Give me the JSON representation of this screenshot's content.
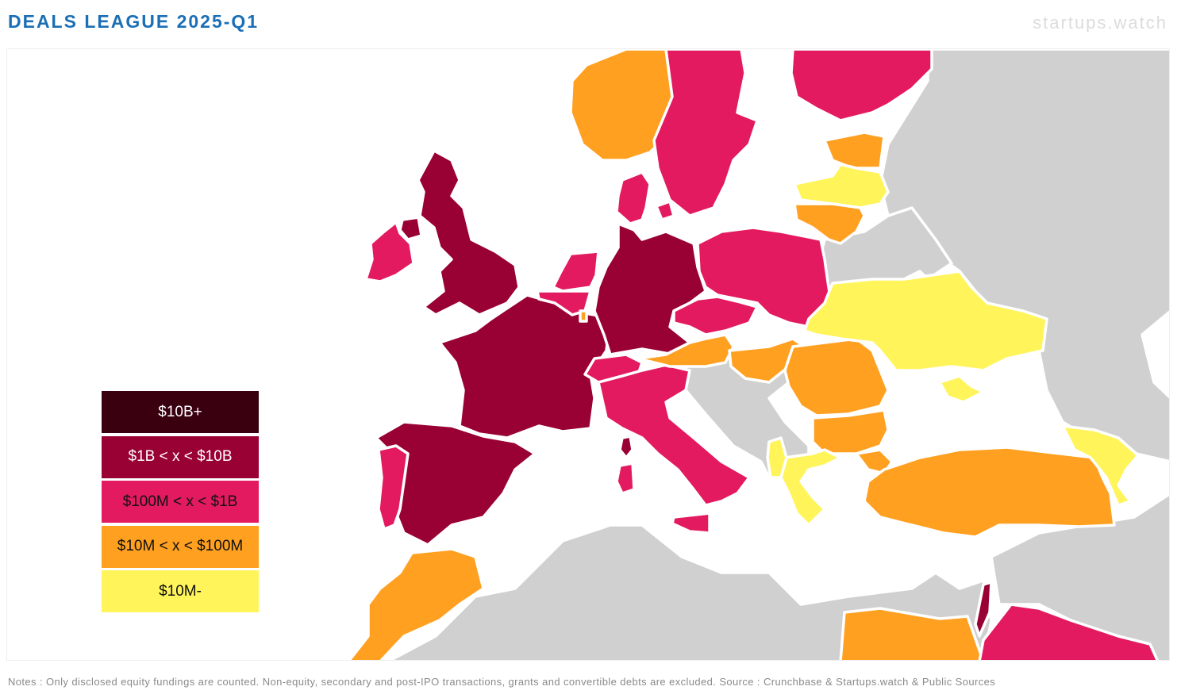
{
  "header": {
    "title": "DEALS LEAGUE 2025-Q1",
    "brand": "startups.watch"
  },
  "colors": {
    "tier_10b_plus": "#3a0010",
    "tier_1b_10b": "#990033",
    "tier_100m_1b": "#e31a5f",
    "tier_10m_100m": "#ffa020",
    "tier_10m_minus": "#fff45a",
    "no_data": "#d0d0d0"
  },
  "legend": {
    "items": [
      {
        "label": "$10B+",
        "tier": "tier_10b_plus",
        "text_color": "#ffffff"
      },
      {
        "label": "$1B < x < $10B",
        "tier": "tier_1b_10b",
        "text_color": "#ffffff"
      },
      {
        "label": "$100M < x < $1B",
        "tier": "tier_100m_1b",
        "text_color": "#111111"
      },
      {
        "label": "$10M < x < $100M",
        "tier": "tier_10m_100m",
        "text_color": "#111111"
      },
      {
        "label": "$10M-",
        "tier": "tier_10m_minus",
        "text_color": "#111111"
      }
    ]
  },
  "map": {
    "regions": [
      {
        "name": "united-kingdom",
        "tier": "tier_1b_10b"
      },
      {
        "name": "northern-ireland",
        "tier": "tier_1b_10b"
      },
      {
        "name": "ireland",
        "tier": "tier_100m_1b"
      },
      {
        "name": "france",
        "tier": "tier_1b_10b"
      },
      {
        "name": "spain",
        "tier": "tier_1b_10b"
      },
      {
        "name": "portugal",
        "tier": "tier_100m_1b"
      },
      {
        "name": "germany",
        "tier": "tier_1b_10b"
      },
      {
        "name": "netherlands",
        "tier": "tier_100m_1b"
      },
      {
        "name": "belgium",
        "tier": "tier_100m_1b"
      },
      {
        "name": "luxembourg",
        "tier": "tier_10m_100m"
      },
      {
        "name": "switzerland",
        "tier": "tier_100m_1b"
      },
      {
        "name": "italy",
        "tier": "tier_100m_1b"
      },
      {
        "name": "sardinia",
        "tier": "tier_100m_1b"
      },
      {
        "name": "corsica",
        "tier": "tier_1b_10b"
      },
      {
        "name": "sicily",
        "tier": "tier_100m_1b"
      },
      {
        "name": "norway",
        "tier": "tier_10m_100m"
      },
      {
        "name": "sweden",
        "tier": "tier_100m_1b"
      },
      {
        "name": "finland",
        "tier": "tier_100m_1b"
      },
      {
        "name": "denmark",
        "tier": "tier_100m_1b"
      },
      {
        "name": "estonia",
        "tier": "tier_10m_100m"
      },
      {
        "name": "latvia",
        "tier": "tier_10m_minus"
      },
      {
        "name": "lithuania",
        "tier": "tier_10m_100m"
      },
      {
        "name": "poland",
        "tier": "tier_100m_1b"
      },
      {
        "name": "czechia",
        "tier": "tier_100m_1b"
      },
      {
        "name": "austria",
        "tier": "tier_10m_100m"
      },
      {
        "name": "hungary",
        "tier": "tier_10m_100m"
      },
      {
        "name": "romania",
        "tier": "tier_10m_100m"
      },
      {
        "name": "bulgaria",
        "tier": "tier_10m_100m"
      },
      {
        "name": "ukraine",
        "tier": "tier_10m_minus"
      },
      {
        "name": "greece",
        "tier": "tier_10m_minus"
      },
      {
        "name": "albania",
        "tier": "tier_10m_minus"
      },
      {
        "name": "turkey",
        "tier": "tier_10m_100m"
      },
      {
        "name": "georgia",
        "tier": "tier_10m_minus"
      },
      {
        "name": "morocco",
        "tier": "tier_10m_100m"
      },
      {
        "name": "egypt",
        "tier": "tier_10m_100m"
      },
      {
        "name": "israel",
        "tier": "tier_1b_10b"
      },
      {
        "name": "saudi-arabia",
        "tier": "tier_100m_1b"
      }
    ]
  },
  "footer": {
    "notes": "Notes : Only disclosed equity fundings are counted. Non-equity, secondary and post-IPO transactions, grants and convertible debts are excluded. Source : Crunchbase & Startups.watch & Public Sources"
  }
}
